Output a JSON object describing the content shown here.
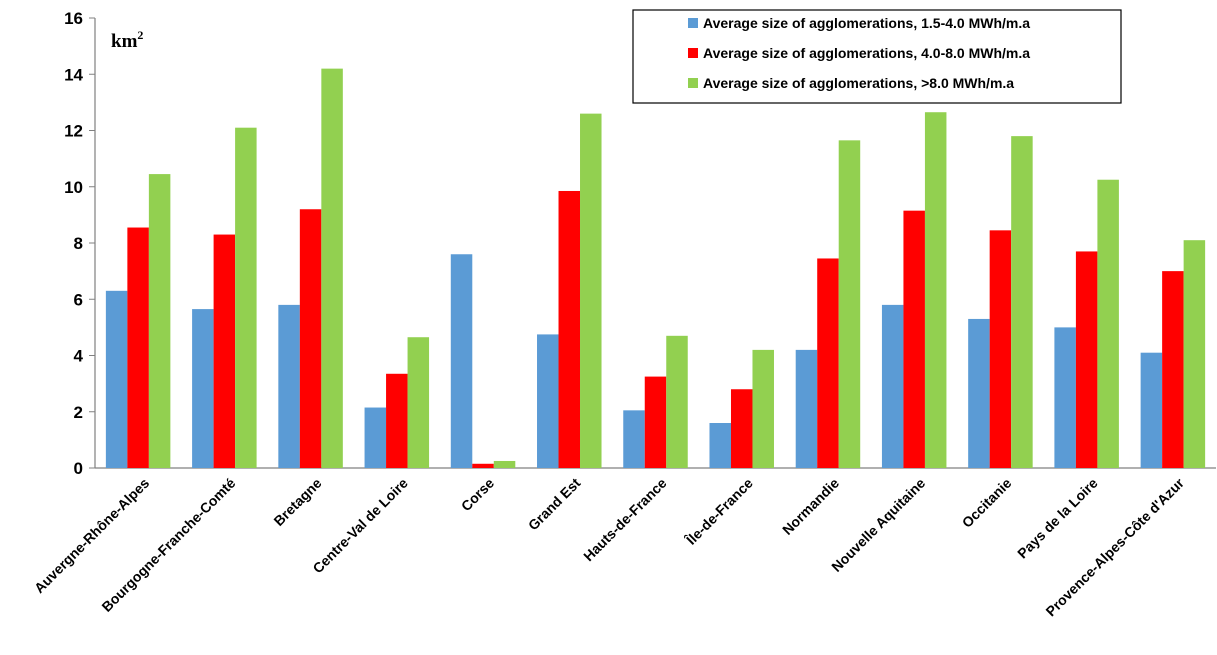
{
  "chart_data": {
    "type": "bar",
    "unit_label": "km",
    "unit_superscript": "2",
    "categories": [
      "Auvergne-Rhône-Alpes",
      "Bourgogne-Franche-Comté",
      "Bretagne",
      "Centre-Val de Loire",
      "Corse",
      "Grand Est",
      "Hauts-de-France",
      "Île-de-France",
      "Normandie",
      "Nouvelle Aquitaine",
      "Occitanie",
      "Pays de la Loire",
      "Provence-Alpes-Côte d'Azur"
    ],
    "series": [
      {
        "name": "Average size of agglomerations, 1.5-4.0 MWh/m.a",
        "color": "#5b9bd5",
        "values": [
          6.3,
          5.65,
          5.8,
          2.15,
          7.6,
          4.75,
          2.05,
          1.6,
          4.2,
          5.8,
          5.3,
          5.0,
          4.1
        ]
      },
      {
        "name": "Average size of agglomerations, 4.0-8.0 MWh/m.a",
        "color": "#ff0000",
        "values": [
          8.55,
          8.3,
          9.2,
          3.35,
          0.15,
          9.85,
          3.25,
          2.8,
          7.45,
          9.15,
          8.45,
          7.7,
          7.0
        ]
      },
      {
        "name": "Average size of agglomerations, >8.0 MWh/m.a",
        "color": "#92d050",
        "values": [
          10.45,
          12.1,
          14.2,
          4.65,
          0.25,
          12.6,
          4.7,
          4.2,
          11.65,
          12.65,
          11.8,
          10.25,
          8.1
        ]
      }
    ],
    "yticks": [
      0,
      2,
      4,
      6,
      8,
      10,
      12,
      14,
      16
    ],
    "ylim": [
      0,
      16
    ],
    "grid": false,
    "legend_position": "top-right"
  }
}
